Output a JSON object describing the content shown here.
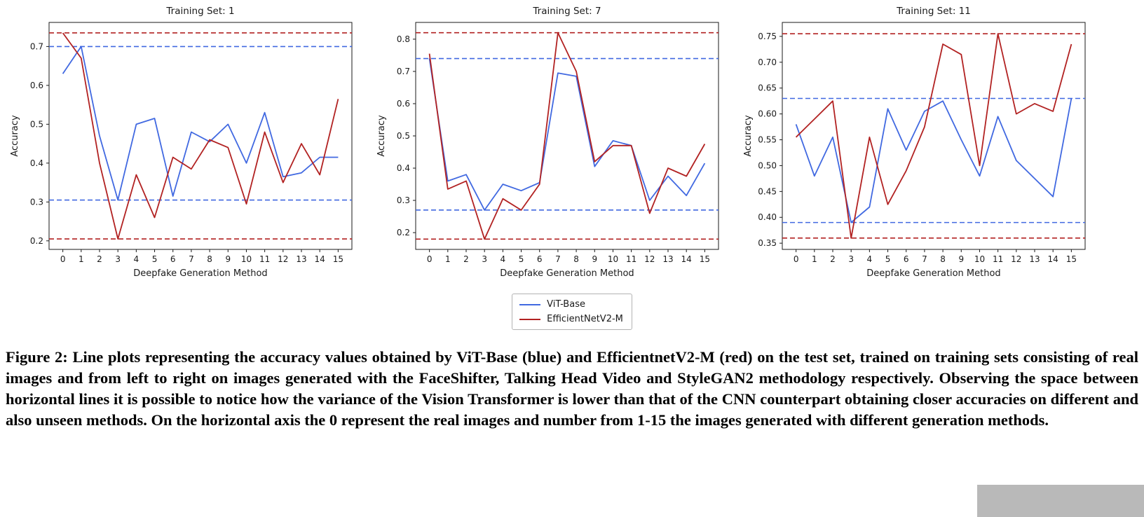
{
  "figure": {
    "caption": "Figure 2: Line plots representing the accuracy values obtained by ViT-Base (blue) and EfficientnetV2-M (red) on the test set, trained on training sets consisting of real images and from left to right on images generated with the FaceShifter, Talking Head Video and StyleGAN2 methodology respectively. Observing the space between horizontal lines it is possible to notice how the variance of the Vision Transformer is lower than that of the CNN counterpart obtaining closer accuracies on different and also unseen methods. On the horizontal axis the 0 represent the real images and number from 1-15 the images generated with different generation methods."
  },
  "colors": {
    "vit_base": "#4169e1",
    "efficientnet": "#b22222"
  },
  "legend": {
    "items": [
      {
        "label": "ViT-Base",
        "color": "#4169e1"
      },
      {
        "label": "EfficientNetV2-M",
        "color": "#b22222"
      }
    ]
  },
  "chart_data": [
    {
      "type": "line",
      "title": "Training Set: 1",
      "xlabel": "Deepfake Generation Method",
      "ylabel": "Accuracy",
      "x": [
        0,
        1,
        2,
        3,
        4,
        5,
        6,
        7,
        8,
        9,
        10,
        11,
        12,
        13,
        14,
        15
      ],
      "xticks": [
        0,
        1,
        2,
        3,
        4,
        5,
        6,
        7,
        8,
        9,
        10,
        11,
        12,
        13,
        14,
        15
      ],
      "xlim": [
        -0.75,
        15.75
      ],
      "ylim": [
        0.178,
        0.762
      ],
      "yticks": [
        0.2,
        0.3,
        0.4,
        0.5,
        0.6,
        0.7
      ],
      "ytick_labels": [
        "0.2",
        "0.3",
        "0.4",
        "0.5",
        "0.6",
        "0.7"
      ],
      "grid": false,
      "series": [
        {
          "name": "ViT-Base",
          "color": "#4169e1",
          "values": [
            0.63,
            0.7,
            0.47,
            0.305,
            0.5,
            0.515,
            0.315,
            0.48,
            0.455,
            0.5,
            0.4,
            0.53,
            0.365,
            0.375,
            0.415,
            0.415
          ]
        },
        {
          "name": "EfficientNetV2-M",
          "color": "#b22222",
          "values": [
            0.735,
            0.67,
            0.4,
            0.205,
            0.37,
            0.26,
            0.415,
            0.385,
            0.46,
            0.44,
            0.295,
            0.48,
            0.35,
            0.45,
            0.37,
            0.565
          ]
        }
      ],
      "hlines": [
        {
          "label": "ViT-Base max",
          "y": 0.7,
          "color": "#4169e1"
        },
        {
          "label": "ViT-Base min",
          "y": 0.305,
          "color": "#4169e1"
        },
        {
          "label": "EfficientNetV2-M max",
          "y": 0.735,
          "color": "#b22222"
        },
        {
          "label": "EfficientNetV2-M min",
          "y": 0.205,
          "color": "#b22222"
        }
      ]
    },
    {
      "type": "line",
      "title": "Training Set: 7",
      "xlabel": "Deepfake Generation Method",
      "ylabel": "Accuracy",
      "x": [
        0,
        1,
        2,
        3,
        4,
        5,
        6,
        7,
        8,
        9,
        10,
        11,
        12,
        13,
        14,
        15
      ],
      "xticks": [
        0,
        1,
        2,
        3,
        4,
        5,
        6,
        7,
        8,
        9,
        10,
        11,
        12,
        13,
        14,
        15
      ],
      "xlim": [
        -0.75,
        15.75
      ],
      "ylim": [
        0.148,
        0.852
      ],
      "yticks": [
        0.2,
        0.3,
        0.4,
        0.5,
        0.6,
        0.7,
        0.8
      ],
      "ytick_labels": [
        "0.2",
        "0.3",
        "0.4",
        "0.5",
        "0.6",
        "0.7",
        "0.8"
      ],
      "grid": false,
      "series": [
        {
          "name": "ViT-Base",
          "color": "#4169e1",
          "values": [
            0.74,
            0.36,
            0.38,
            0.27,
            0.35,
            0.33,
            0.355,
            0.695,
            0.685,
            0.405,
            0.485,
            0.47,
            0.3,
            0.375,
            0.315,
            0.415
          ]
        },
        {
          "name": "EfficientNetV2-M",
          "color": "#b22222",
          "values": [
            0.755,
            0.335,
            0.36,
            0.18,
            0.305,
            0.27,
            0.35,
            0.82,
            0.7,
            0.42,
            0.47,
            0.47,
            0.26,
            0.4,
            0.375,
            0.475
          ]
        }
      ],
      "hlines": [
        {
          "label": "ViT-Base max",
          "y": 0.74,
          "color": "#4169e1"
        },
        {
          "label": "ViT-Base min",
          "y": 0.27,
          "color": "#4169e1"
        },
        {
          "label": "EfficientNetV2-M max",
          "y": 0.82,
          "color": "#b22222"
        },
        {
          "label": "EfficientNetV2-M min",
          "y": 0.18,
          "color": "#b22222"
        }
      ]
    },
    {
      "type": "line",
      "title": "Training Set: 11",
      "xlabel": "Deepfake Generation Method",
      "ylabel": "Accuracy",
      "x": [
        0,
        1,
        2,
        3,
        4,
        5,
        6,
        7,
        8,
        9,
        10,
        11,
        12,
        13,
        14,
        15
      ],
      "xticks": [
        0,
        1,
        2,
        3,
        4,
        5,
        6,
        7,
        8,
        9,
        10,
        11,
        12,
        13,
        14,
        15
      ],
      "xlim": [
        -0.75,
        15.75
      ],
      "ylim": [
        0.338,
        0.777
      ],
      "yticks": [
        0.35,
        0.4,
        0.45,
        0.5,
        0.55,
        0.6,
        0.65,
        0.7,
        0.75
      ],
      "ytick_labels": [
        "0.35",
        "0.40",
        "0.45",
        "0.50",
        "0.55",
        "0.60",
        "0.65",
        "0.70",
        "0.75"
      ],
      "grid": false,
      "series": [
        {
          "name": "ViT-Base",
          "color": "#4169e1",
          "values": [
            0.58,
            0.48,
            0.555,
            0.39,
            0.42,
            0.61,
            0.53,
            0.605,
            0.625,
            0.55,
            0.48,
            0.595,
            0.51,
            0.475,
            0.44,
            0.63
          ]
        },
        {
          "name": "EfficientNetV2-M",
          "color": "#b22222",
          "values": [
            0.555,
            0.59,
            0.625,
            0.36,
            0.555,
            0.425,
            0.49,
            0.575,
            0.735,
            0.715,
            0.5,
            0.755,
            0.6,
            0.62,
            0.605,
            0.735
          ]
        }
      ],
      "hlines": [
        {
          "label": "ViT-Base max",
          "y": 0.63,
          "color": "#4169e1"
        },
        {
          "label": "ViT-Base min",
          "y": 0.39,
          "color": "#4169e1"
        },
        {
          "label": "EfficientNetV2-M max",
          "y": 0.755,
          "color": "#b22222"
        },
        {
          "label": "EfficientNetV2-M min",
          "y": 0.36,
          "color": "#b22222"
        }
      ]
    }
  ]
}
